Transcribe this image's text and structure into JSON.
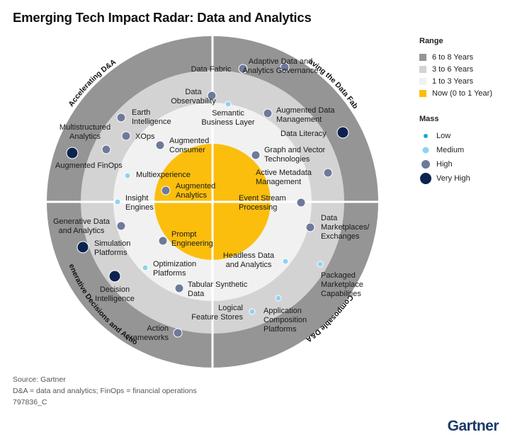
{
  "title": "Emerging Tech Impact Radar: Data and Analytics",
  "colors": {
    "ring_outer": "#959595",
    "ring_mid": "#d3d3d3",
    "ring_inner": "#f1f1f1",
    "core": "#fbbe0d",
    "mass_low": "#1ba6d8",
    "mass_medium": "#8fd3ef",
    "mass_high": "#6e7a9a",
    "mass_very_high": "#0c2350"
  },
  "quadrants": [
    "Accelerating D&A",
    "Weaving the Data Fabric",
    "Composable D&A",
    "Generative Decisions and Actions"
  ],
  "legend": {
    "range_title": "Range",
    "ranges": [
      "6 to 8 Years",
      "3 to 6 Years",
      "1 to 3 Years",
      "Now (0 to 1 Year)"
    ],
    "mass_title": "Mass",
    "masses": [
      "Low",
      "Medium",
      "High",
      "Very High"
    ]
  },
  "technologies": [
    {
      "label": [
        "Data Fabric"
      ],
      "mass": "high"
    },
    {
      "label": [
        "Adaptive Data and",
        "Analytics Governance"
      ],
      "mass": "high"
    },
    {
      "label": [
        "Data",
        "Observability"
      ],
      "mass": "high"
    },
    {
      "label": [
        "Semantic",
        "Business Layer"
      ],
      "mass": "medium"
    },
    {
      "label": [
        "Augmented Data",
        "Management"
      ],
      "mass": "high"
    },
    {
      "label": [
        "Data Literacy"
      ],
      "mass": "very_high"
    },
    {
      "label": [
        "Earth",
        "Intelligence"
      ],
      "mass": "high"
    },
    {
      "label": [
        "Multistructured",
        "Analytics"
      ],
      "mass": "high"
    },
    {
      "label": [
        "XOps"
      ],
      "mass": "high"
    },
    {
      "label": [
        "Augmented",
        "Consumer"
      ],
      "mass": "high"
    },
    {
      "label": [
        "Augmented FinOps"
      ],
      "mass": "very_high"
    },
    {
      "label": [
        "Graph and Vector",
        "Technologies"
      ],
      "mass": "high"
    },
    {
      "label": [
        "Active Metadata",
        "Management"
      ],
      "mass": "high"
    },
    {
      "label": [
        "Multiexperience"
      ],
      "mass": "medium"
    },
    {
      "label": [
        "Augmented",
        "Analytics"
      ],
      "mass": "high"
    },
    {
      "label": [
        "Insight",
        "Engines"
      ],
      "mass": "medium"
    },
    {
      "label": [
        "Event Stream",
        "Processing"
      ],
      "mass": "high"
    },
    {
      "label": [
        "Generative Data",
        "and Analytics"
      ],
      "mass": "high"
    },
    {
      "label": [
        "Data",
        "Marketplaces/",
        "Exchanges"
      ],
      "mass": "high"
    },
    {
      "label": [
        "Simulation",
        "Platforms"
      ],
      "mass": "very_high"
    },
    {
      "label": [
        "Prompt",
        "Engineering"
      ],
      "mass": "high"
    },
    {
      "label": [
        "Headless Data",
        "and Analytics"
      ],
      "mass": "medium"
    },
    {
      "label": [
        "Optimization",
        "Platforms"
      ],
      "mass": "medium"
    },
    {
      "label": [
        "Packaged",
        "Marketplace",
        "Capabilities"
      ],
      "mass": "medium"
    },
    {
      "label": [
        "Decision",
        "Intelligence"
      ],
      "mass": "very_high"
    },
    {
      "label": [
        "Tabular Synthetic",
        "Data"
      ],
      "mass": "high"
    },
    {
      "label": [
        "Logical",
        "Feature Stores"
      ],
      "mass": "medium"
    },
    {
      "label": [
        "Application",
        "Composition",
        "Platforms"
      ],
      "mass": "medium"
    },
    {
      "label": [
        "Action",
        "Frameworks"
      ],
      "mass": "high"
    }
  ],
  "footer": {
    "source": "Source: Gartner",
    "note": "D&A = data and analytics; FinOps = financial operations",
    "id": "797836_C"
  },
  "logo": "Gartner"
}
